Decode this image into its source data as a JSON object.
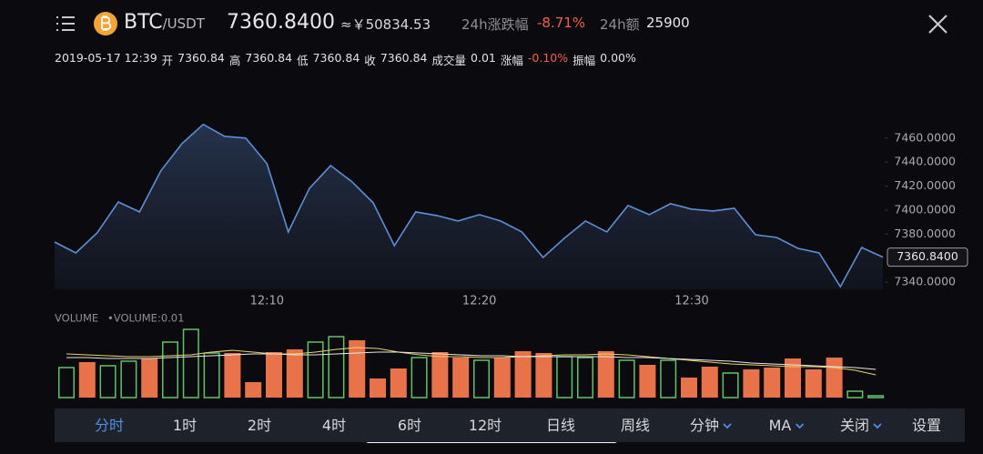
{
  "header": {
    "symbol": "BTC",
    "quote": "/USDT",
    "price": "7360.8400",
    "cny": "≈￥50834.53",
    "change_label": "24h涨跌幅",
    "change": "-8.71%",
    "amount_label": "24h额",
    "amount": "25900"
  },
  "info": {
    "time": "2019-05-17 12:39",
    "items": [
      {
        "label": "开",
        "value": "7360.84"
      },
      {
        "label": "高",
        "value": "7360.84"
      },
      {
        "label": "低",
        "value": "7360.84"
      },
      {
        "label": "收",
        "value": "7360.84"
      },
      {
        "label": "成交量",
        "value": "0.01"
      },
      {
        "label": "涨幅",
        "value": "-0.10%",
        "color": "#f0604d"
      },
      {
        "label": "振幅",
        "value": "0.00%"
      }
    ]
  },
  "chart_data": [
    {
      "type": "line",
      "categories": [
        null,
        null,
        null,
        null,
        null,
        null,
        null,
        null,
        null,
        null,
        "12:10",
        null,
        null,
        null,
        null,
        null,
        null,
        null,
        null,
        null,
        "12:20",
        null,
        null,
        null,
        null,
        null,
        null,
        null,
        null,
        null,
        "12:30",
        null,
        null,
        null,
        null,
        null,
        null,
        null,
        null,
        null
      ],
      "values": [
        7373.4,
        7364.3,
        7381.0,
        7406.8,
        7398.5,
        7432.7,
        7455.4,
        7471.4,
        7461.5,
        7460.0,
        7438.7,
        7381.8,
        7418.2,
        7437.2,
        7423.6,
        7406.1,
        7370.4,
        7398.5,
        7395.5,
        7390.9,
        7396.2,
        7390.9,
        7381.8,
        7360.5,
        7376.5,
        7390.9,
        7381.8,
        7403.8,
        7396.2,
        7405.3,
        7400.8,
        7399.3,
        7401.5,
        7379.5,
        7377.2,
        7368.1,
        7364.3,
        7336.2,
        7368.9,
        7360.84
      ],
      "last_value_label": "7360.8400",
      "color": "#5d8fd6",
      "ylim": [
        7334,
        7500
      ],
      "yticks": [
        {
          "value": 7460,
          "label": "7460.0000"
        },
        {
          "value": 7440,
          "label": "7440.0000"
        },
        {
          "value": 7420,
          "label": "7420.0000"
        },
        {
          "value": 7400,
          "label": "7400.0000"
        },
        {
          "value": 7380,
          "label": "7380.0000"
        },
        {
          "value": 7340,
          "label": "7340.0000"
        }
      ]
    },
    {
      "type": "bar",
      "title": "VOLUME",
      "subtitle": "•VOLUME:0.01",
      "values": [
        33,
        39,
        35,
        40,
        43,
        61,
        75,
        49,
        49,
        17,
        50,
        53,
        61,
        67,
        63,
        21,
        32,
        44,
        50,
        44,
        41,
        44,
        51,
        49,
        45,
        44,
        51,
        41,
        36,
        41,
        22,
        34,
        27,
        31,
        33,
        43,
        31,
        44,
        7,
        2
      ],
      "bar_colors": [
        "#5fc36b",
        "#e8734a",
        "#5fc36b",
        "#5fc36b",
        "#e8734a",
        "#5fc36b",
        "#5fc36b",
        "#5fc36b",
        "#e8734a",
        "#e8734a",
        "#e8734a",
        "#e8734a",
        "#5fc36b",
        "#5fc36b",
        "#e8734a",
        "#e8734a",
        "#e8734a",
        "#5fc36b",
        "#e8734a",
        "#e8734a",
        "#5fc36b",
        "#e8734a",
        "#e8734a",
        "#e8734a",
        "#5fc36b",
        "#5fc36b",
        "#e8734a",
        "#5fc36b",
        "#e8734a",
        "#5fc36b",
        "#e8734a",
        "#e8734a",
        "#5fc36b",
        "#e8734a",
        "#e8734a",
        "#e8734a",
        "#e8734a",
        "#e8734a",
        "#5fc36b",
        "#5fc36b"
      ],
      "hollow_color": "#5fc36b",
      "ylim": [
        0,
        80
      ],
      "lines": [
        {
          "color": "#e8d26a",
          "values": [
            48,
            47,
            46,
            45,
            45,
            46,
            47,
            50,
            52,
            50,
            48,
            48,
            50,
            53,
            55,
            54,
            50,
            47,
            45,
            45,
            44,
            44,
            45,
            46,
            47,
            47,
            48,
            47,
            45,
            43,
            41,
            39,
            37,
            36,
            35,
            34,
            34,
            33,
            30,
            25
          ]
        },
        {
          "color": "#e6e6e6",
          "values": [
            44,
            44,
            43,
            43,
            43,
            44,
            45,
            46,
            47,
            48,
            48,
            47,
            47,
            48,
            49,
            50,
            50,
            49,
            48,
            47,
            46,
            46,
            45,
            45,
            45,
            45,
            45,
            44,
            44,
            43,
            42,
            41,
            40,
            38,
            37,
            36,
            35,
            34,
            33,
            31
          ]
        }
      ]
    }
  ],
  "toolbar": {
    "active": 0,
    "items": [
      {
        "label": "分时"
      },
      {
        "label": "1时"
      },
      {
        "label": "2时"
      },
      {
        "label": "4时"
      },
      {
        "label": "6时"
      },
      {
        "label": "12时"
      },
      {
        "label": "日线"
      },
      {
        "label": "周线"
      },
      {
        "label": "分钟",
        "dropdown": true
      },
      {
        "label": "MA",
        "dropdown": true
      },
      {
        "label": "关闭",
        "dropdown": true
      },
      {
        "label": "设置"
      }
    ]
  }
}
